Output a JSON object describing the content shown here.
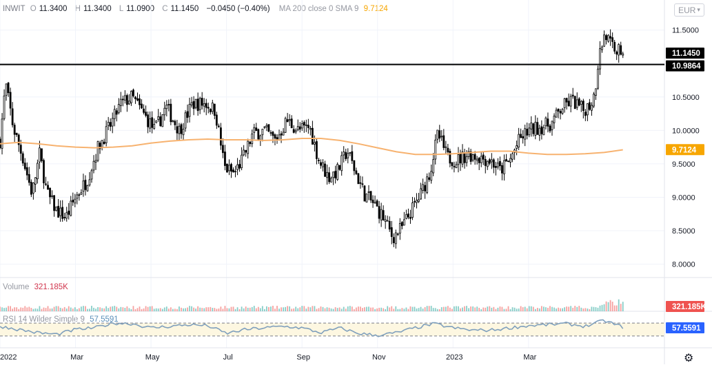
{
  "legend": {
    "symbol": "INWIT",
    "o_label": "O",
    "o_value": "11.3400",
    "h_label": "H",
    "h_value": "11.3400",
    "l_label": "L",
    "l_value": "11.0900",
    "c_label": "C",
    "c_value": "11.1450",
    "change": "−0.0450 (−0.40%)",
    "ma_label": "MA 200 close 0 SMA 9",
    "ma_value": "9.7124"
  },
  "volume_legend": {
    "label": "Volume",
    "value": "321.185K"
  },
  "rsi_legend": {
    "label": "RSI 14 Wilder Simple 9",
    "value": "57.5591"
  },
  "currency": "EUR",
  "currency_icon": "chevron-down-icon",
  "settings_icon": "gear-icon",
  "colors": {
    "up": "#26a69a",
    "down": "#ef5350",
    "candle": "#000000",
    "ma": "#f7b26f",
    "rsi": "#7e9fbd",
    "rsi_band": "#fdf7e1",
    "volume_badge": "#ef5350",
    "price_badge": "#000000",
    "ma_badge": "#f7a600",
    "rsi_badge": "#2962ff"
  },
  "chart_data": {
    "type": "candlestick",
    "instrument": "INWIT",
    "currency": "EUR",
    "last_close": 11.145,
    "horizontal_line": 10.9864,
    "ma_last": 9.7124,
    "volume_last": "321.185K",
    "rsi_last": 57.5591,
    "y_ticks": [
      "11.5000",
      "11.0000",
      "10.5000",
      "10.0000",
      "9.5000",
      "9.0000",
      "8.5000",
      "8.0000"
    ],
    "y_tick_values": [
      11.5,
      11.0,
      10.5,
      10.0,
      9.5,
      9.0,
      8.5,
      8.0
    ],
    "ylim": [
      7.8,
      11.95
    ],
    "x_labels": [
      "2022",
      "Mar",
      "May",
      "Jul",
      "Sep",
      "Nov",
      "2023",
      "Mar"
    ],
    "x_label_positions": [
      0,
      2,
      4,
      6,
      8,
      10,
      12,
      14
    ],
    "xlim": [
      0,
      17.6
    ],
    "price_path": [
      [
        0.0,
        9.85
      ],
      [
        0.15,
        10.7
      ],
      [
        0.35,
        10.05
      ],
      [
        0.6,
        9.6
      ],
      [
        0.85,
        9.05
      ],
      [
        1.05,
        9.65
      ],
      [
        1.25,
        9.05
      ],
      [
        1.5,
        8.8
      ],
      [
        1.75,
        8.7
      ],
      [
        2.0,
        9.0
      ],
      [
        2.3,
        9.25
      ],
      [
        2.6,
        9.75
      ],
      [
        2.9,
        10.05
      ],
      [
        3.2,
        10.4
      ],
      [
        3.5,
        10.5
      ],
      [
        3.8,
        10.25
      ],
      [
        4.1,
        10.0
      ],
      [
        4.4,
        10.35
      ],
      [
        4.75,
        10.0
      ],
      [
        5.1,
        10.4
      ],
      [
        5.45,
        10.4
      ],
      [
        5.7,
        10.3
      ],
      [
        5.95,
        9.45
      ],
      [
        6.2,
        9.35
      ],
      [
        6.45,
        9.6
      ],
      [
        6.7,
        9.95
      ],
      [
        7.0,
        10.0
      ],
      [
        7.3,
        9.85
      ],
      [
        7.6,
        10.15
      ],
      [
        7.9,
        10.0
      ],
      [
        8.2,
        10.05
      ],
      [
        8.45,
        9.55
      ],
      [
        8.7,
        9.3
      ],
      [
        8.95,
        9.4
      ],
      [
        9.2,
        9.7
      ],
      [
        9.4,
        9.4
      ],
      [
        9.65,
        9.05
      ],
      [
        9.9,
        8.9
      ],
      [
        10.15,
        8.7
      ],
      [
        10.4,
        8.4
      ],
      [
        10.65,
        8.55
      ],
      [
        10.9,
        8.8
      ],
      [
        11.15,
        9.05
      ],
      [
        11.4,
        9.4
      ],
      [
        11.6,
        9.95
      ],
      [
        11.85,
        9.6
      ],
      [
        12.1,
        9.55
      ],
      [
        12.4,
        9.65
      ],
      [
        12.7,
        9.6
      ],
      [
        13.0,
        9.55
      ],
      [
        13.25,
        9.4
      ],
      [
        13.5,
        9.55
      ],
      [
        13.75,
        9.85
      ],
      [
        14.0,
        10.0
      ],
      [
        14.3,
        10.05
      ],
      [
        14.6,
        10.1
      ],
      [
        14.9,
        10.35
      ],
      [
        15.15,
        10.45
      ],
      [
        15.45,
        10.3
      ],
      [
        15.65,
        10.4
      ],
      [
        15.75,
        10.55
      ],
      [
        15.85,
        11.05
      ],
      [
        16.0,
        11.45
      ],
      [
        16.2,
        11.3
      ],
      [
        16.4,
        11.2
      ],
      [
        16.5,
        11.145
      ]
    ],
    "ma_path": [
      [
        0.0,
        9.8
      ],
      [
        0.5,
        9.82
      ],
      [
        1.0,
        9.8
      ],
      [
        1.5,
        9.77
      ],
      [
        2.0,
        9.75
      ],
      [
        2.5,
        9.74
      ],
      [
        3.0,
        9.75
      ],
      [
        3.5,
        9.77
      ],
      [
        4.0,
        9.81
      ],
      [
        4.5,
        9.84
      ],
      [
        5.0,
        9.86
      ],
      [
        5.5,
        9.87
      ],
      [
        6.0,
        9.86
      ],
      [
        6.5,
        9.86
      ],
      [
        7.0,
        9.85
      ],
      [
        7.5,
        9.86
      ],
      [
        8.0,
        9.88
      ],
      [
        8.5,
        9.88
      ],
      [
        9.0,
        9.85
      ],
      [
        9.5,
        9.8
      ],
      [
        10.0,
        9.74
      ],
      [
        10.5,
        9.68
      ],
      [
        11.0,
        9.64
      ],
      [
        11.5,
        9.64
      ],
      [
        12.0,
        9.65
      ],
      [
        12.5,
        9.67
      ],
      [
        13.0,
        9.69
      ],
      [
        13.5,
        9.69
      ],
      [
        14.0,
        9.66
      ],
      [
        14.5,
        9.64
      ],
      [
        15.0,
        9.64
      ],
      [
        15.5,
        9.65
      ],
      [
        16.0,
        9.67
      ],
      [
        16.5,
        9.71
      ]
    ],
    "rsi_path": [
      [
        0.0,
        60
      ],
      [
        1.0,
        40
      ],
      [
        1.5,
        35
      ],
      [
        2.0,
        50
      ],
      [
        2.5,
        55
      ],
      [
        3.0,
        70
      ],
      [
        3.5,
        68
      ],
      [
        4.0,
        55
      ],
      [
        4.5,
        60
      ],
      [
        5.0,
        65
      ],
      [
        5.5,
        62
      ],
      [
        6.0,
        38
      ],
      [
        6.5,
        50
      ],
      [
        7.0,
        55
      ],
      [
        7.5,
        60
      ],
      [
        8.0,
        55
      ],
      [
        8.5,
        40
      ],
      [
        9.0,
        55
      ],
      [
        9.5,
        38
      ],
      [
        10.0,
        32
      ],
      [
        10.5,
        40
      ],
      [
        11.0,
        55
      ],
      [
        11.5,
        68
      ],
      [
        12.0,
        55
      ],
      [
        12.5,
        48
      ],
      [
        13.0,
        48
      ],
      [
        13.5,
        55
      ],
      [
        14.0,
        62
      ],
      [
        14.5,
        65
      ],
      [
        15.0,
        68
      ],
      [
        15.5,
        60
      ],
      [
        16.0,
        78
      ],
      [
        16.5,
        57.56
      ]
    ],
    "rsi_bands": [
      70,
      30
    ]
  }
}
